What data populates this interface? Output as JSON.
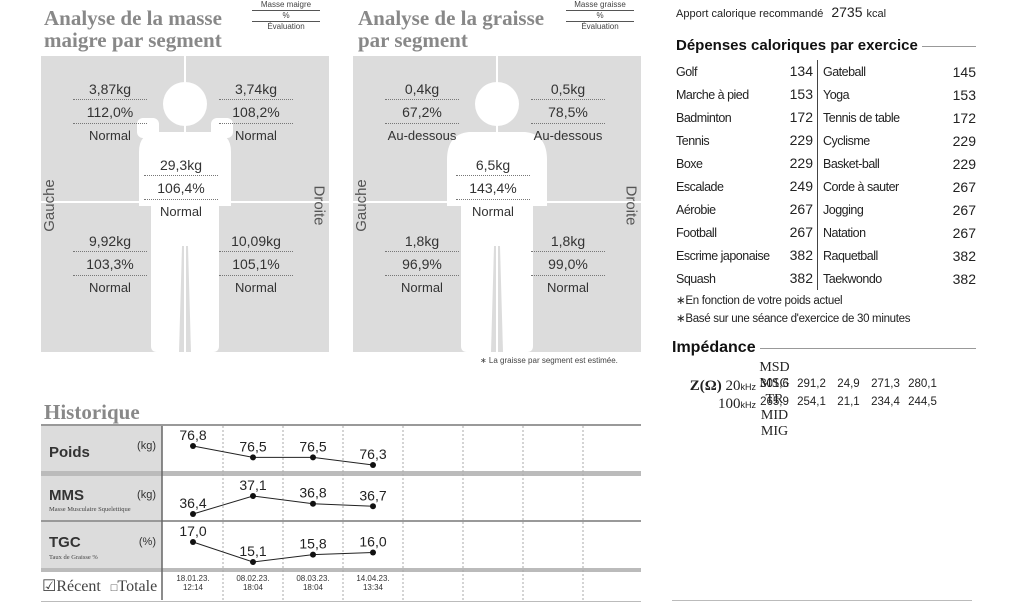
{
  "lean": {
    "title_line1": "Analyse de la masse",
    "title_line2": "maigre par segment",
    "legend_top": "Masse maigre",
    "legend_mid": "%",
    "legend_bottom": "Évaluation",
    "left_label": "Gauche",
    "right_label": "Droite",
    "arm_left": {
      "value": "3,87kg",
      "pct": "112,0%",
      "eval": "Normal"
    },
    "arm_right": {
      "value": "3,74kg",
      "pct": "108,2%",
      "eval": "Normal"
    },
    "trunk": {
      "value": "29,3kg",
      "pct": "106,4%",
      "eval": "Normal"
    },
    "leg_left": {
      "value": "9,92kg",
      "pct": "103,3%",
      "eval": "Normal"
    },
    "leg_right": {
      "value": "10,09kg",
      "pct": "105,1%",
      "eval": "Normal"
    }
  },
  "fat": {
    "title_line1": "Analyse de la graisse",
    "title_line2": "par segment",
    "legend_top": "Masse graisse",
    "legend_mid": "%",
    "legend_bottom": "Évaluation",
    "left_label": "Gauche",
    "right_label": "Droite",
    "arm_left": {
      "value": "0,4kg",
      "pct": "67,2%",
      "eval": "Au-dessous"
    },
    "arm_right": {
      "value": "0,5kg",
      "pct": "78,5%",
      "eval": "Au-dessous"
    },
    "trunk": {
      "value": "6,5kg",
      "pct": "143,4%",
      "eval": "Normal"
    },
    "leg_left": {
      "value": "1,8kg",
      "pct": "96,9%",
      "eval": "Normal"
    },
    "leg_right": {
      "value": "1,8kg",
      "pct": "99,0%",
      "eval": "Normal"
    },
    "footnote": "∗ La graisse par segment est estimée."
  },
  "calories": {
    "label": "Apport calorique recommandé",
    "value": "2735",
    "unit": "kcal"
  },
  "exercise": {
    "title": "Dépenses caloriques par exercice",
    "rows": [
      {
        "name1": "Golf",
        "val1": "134",
        "name2": "Gateball",
        "val2": "145"
      },
      {
        "name1": "Marche à pied",
        "val1": "153",
        "name2": "Yoga",
        "val2": "153"
      },
      {
        "name1": "Badminton",
        "val1": "172",
        "name2": "Tennis de table",
        "val2": "172"
      },
      {
        "name1": "Tennis",
        "val1": "229",
        "name2": "Cyclisme",
        "val2": "229"
      },
      {
        "name1": "Boxe",
        "val1": "229",
        "name2": "Basket-ball",
        "val2": "229"
      },
      {
        "name1": "Escalade",
        "val1": "249",
        "name2": "Corde à sauter",
        "val2": "267"
      },
      {
        "name1": "Aérobie",
        "val1": "267",
        "name2": "Jogging",
        "val2": "267"
      },
      {
        "name1": "Football",
        "val1": "267",
        "name2": "Natation",
        "val2": "267"
      },
      {
        "name1": "Escrime japonaise",
        "val1": "382",
        "name2": "Raquetball",
        "val2": "382"
      },
      {
        "name1": "Squash",
        "val1": "382",
        "name2": "Taekwondo",
        "val2": "382"
      }
    ],
    "note1": "∗En fonction de votre poids actuel",
    "note2": "∗Basé sur une séance d'exercice de 30 minutes"
  },
  "impedance": {
    "title": "Impédance",
    "headers": [
      "MSD",
      "MSG",
      "TR",
      "MID",
      "MIG"
    ],
    "z_label": "Z(Ω)",
    "row20_label": "20",
    "row20_unit": "kHz",
    "row20": [
      "301,6",
      "291,2",
      "24,9",
      "271,3",
      "280,1"
    ],
    "row100_label": "100",
    "row100_unit": "kHz",
    "row100": [
      "265,9",
      "254,1",
      "21,1",
      "234,4",
      "244,5"
    ]
  },
  "history": {
    "title": "Historique",
    "rows": [
      {
        "name": "Poids",
        "unit": "(kg)",
        "sub": "",
        "values": [
          "76,8",
          "76,5",
          "76,5",
          "76,3"
        ],
        "nums": [
          76.8,
          76.5,
          76.5,
          76.3
        ]
      },
      {
        "name": "MMS",
        "unit": "(kg)",
        "sub": "Masse Musculaire Squelettique",
        "values": [
          "36,4",
          "37,1",
          "36,8",
          "36,7"
        ],
        "nums": [
          36.4,
          37.1,
          36.8,
          36.7
        ]
      },
      {
        "name": "TGC",
        "unit": "(%)",
        "sub": "Taux de Graisse %",
        "values": [
          "17,0",
          "15,1",
          "15,8",
          "16,0"
        ],
        "nums": [
          17.0,
          15.1,
          15.8,
          16.0
        ]
      }
    ],
    "dates": [
      {
        "d": "18.01.23.",
        "t": "12:14"
      },
      {
        "d": "08.02.23.",
        "t": "18:04"
      },
      {
        "d": "08.03.23.",
        "t": "18:04"
      },
      {
        "d": "14.04.23.",
        "t": "13:34"
      }
    ],
    "recent_label": "Récent",
    "total_label": "Totale"
  }
}
